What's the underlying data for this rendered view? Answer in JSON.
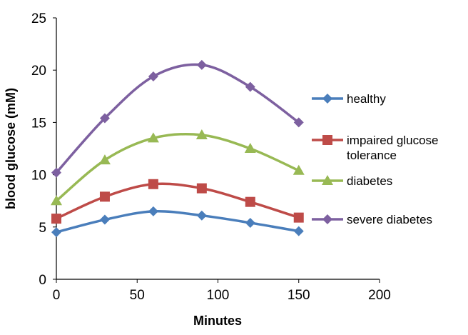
{
  "chart_data": {
    "type": "line",
    "title": "",
    "xlabel": "Minutes",
    "ylabel": "blood glucose (mM)",
    "xlim": [
      0,
      200
    ],
    "ylim": [
      0,
      25
    ],
    "xticks": [
      0,
      50,
      100,
      150,
      200
    ],
    "yticks": [
      0,
      5,
      10,
      15,
      20,
      25
    ],
    "grid": false,
    "legend_position": "right",
    "x": [
      0,
      30,
      60,
      90,
      120,
      150
    ],
    "series": [
      {
        "name": "healthy",
        "label_lines": [
          "healthy"
        ],
        "color": "#4a7ebb",
        "marker": "diamond",
        "values": [
          4.5,
          5.7,
          6.5,
          6.1,
          5.4,
          4.6
        ]
      },
      {
        "name": "impaired glucose tolerance",
        "label_lines": [
          "impaired glucose",
          "tolerance"
        ],
        "color": "#be4b48",
        "marker": "square",
        "values": [
          5.8,
          7.9,
          9.1,
          8.7,
          7.4,
          5.9
        ]
      },
      {
        "name": "diabetes",
        "label_lines": [
          "diabetes"
        ],
        "color": "#98b954",
        "marker": "triangle",
        "values": [
          7.5,
          11.4,
          13.5,
          13.8,
          12.5,
          10.4
        ]
      },
      {
        "name": "severe diabetes",
        "label_lines": [
          "severe diabetes"
        ],
        "color": "#7d60a0",
        "marker": "diamond",
        "values": [
          10.2,
          15.4,
          19.4,
          20.5,
          18.4,
          15.0
        ]
      }
    ]
  }
}
